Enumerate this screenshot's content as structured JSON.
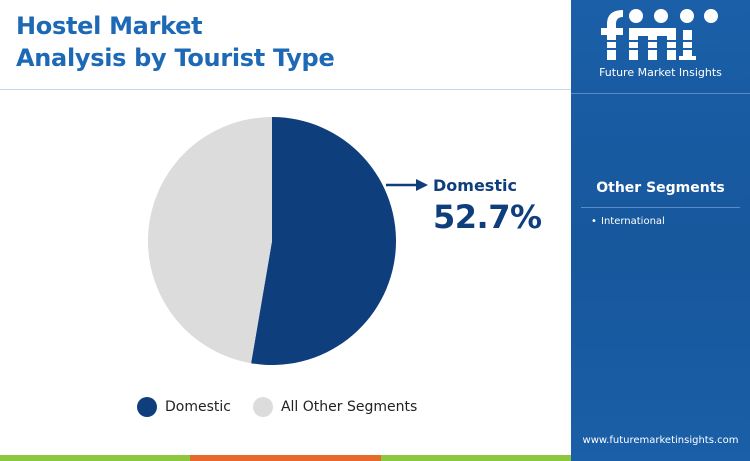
{
  "title_line1": "Hostel Market",
  "title_line2": "Analysis by Tourist Type",
  "callout": {
    "label": "Domestic",
    "value": "52.7%"
  },
  "colors": {
    "domestic": "#0f3e7d",
    "others": "#dcdcdc",
    "title": "#1d69b5",
    "panel": "#1a5fa8",
    "bottom_bar": [
      "#8dc63f",
      "#e76a2a",
      "#8dc63f"
    ]
  },
  "chart_data": {
    "type": "pie",
    "categories": [
      "Domestic",
      "All Other Segments"
    ],
    "values": [
      52.7,
      47.3
    ],
    "title": "Hostel Market Analysis by Tourist Type",
    "legend_position": "bottom"
  },
  "legend": [
    {
      "label": "Domestic",
      "color": "#0f3e7d"
    },
    {
      "label": "All Other Segments",
      "color": "#dcdcdc"
    }
  ],
  "sidebar": {
    "logo_text": "fmi",
    "tagline": "Future Market Insights",
    "heading": "Other Segments",
    "items": [
      "International"
    ],
    "website": "www.futuremarketinsights.com"
  }
}
